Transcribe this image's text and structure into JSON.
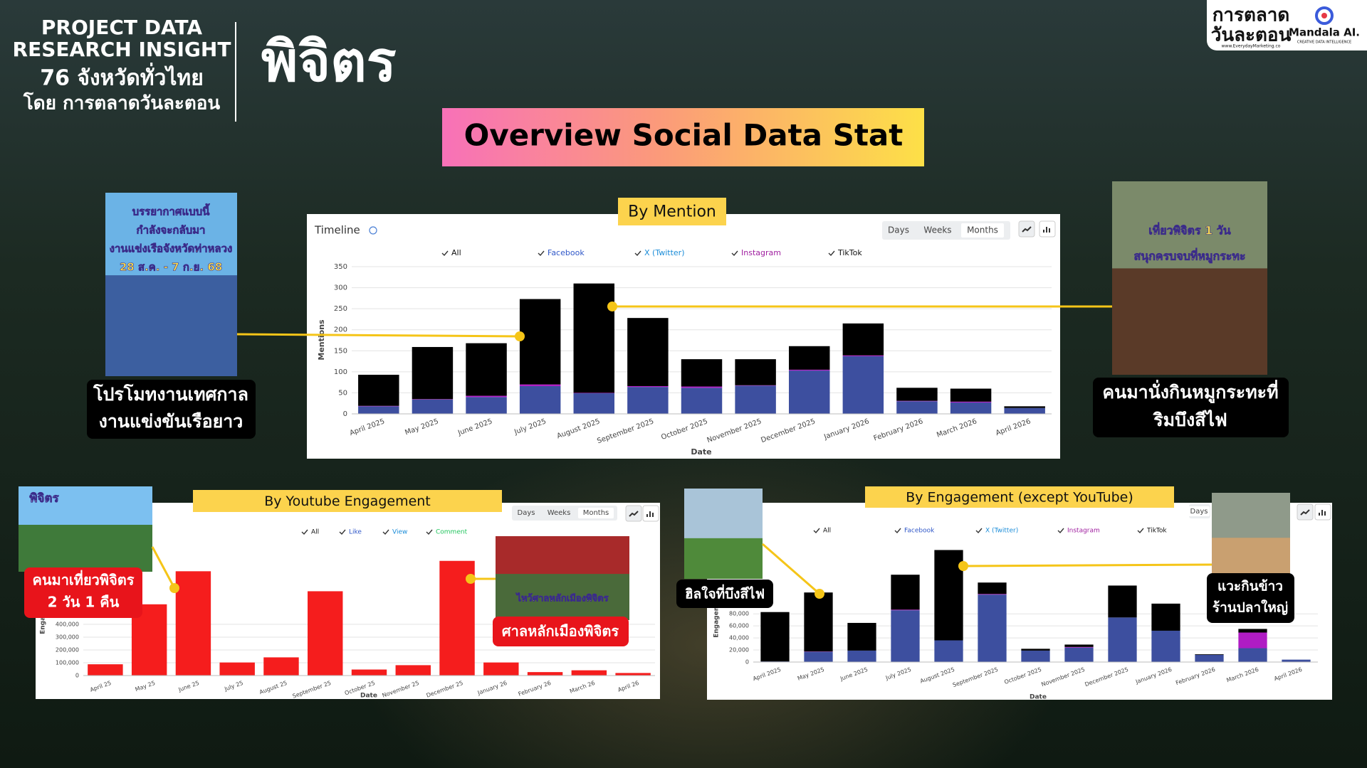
{
  "header": {
    "lines": [
      "PROJECT DATA",
      "RESEARCH INSIGHT",
      "76 จังหวัดทั่วไทย",
      "โดย การตลาดวันละตอน"
    ],
    "province": "พิจิตร"
  },
  "title": "Overview Social Data Stat",
  "logos": [
    "การตลาด",
    "วันละตอน",
    "www.EverydayMarketing.co",
    "Mandala AI.",
    "CREATIVE DATA INTELLIGENCE"
  ],
  "photos": [
    {
      "lines": [
        "บรรยากาศแบบนี้",
        "กำลังจะกลับมา",
        "งานแข่งเรือจังหวัดท่าหลวง",
        "28 ส.ค. - 7 ก.ย. 68"
      ]
    },
    {
      "lines": [
        "เที่ยวพิจิตร 1 วัน",
        "สนุกครบจบที่หมูกระทะ"
      ]
    },
    {
      "lines": [
        "พิจิตร"
      ]
    },
    {
      "lines": [
        "ไหว้ศาลหลักเมืองพิจิตร"
      ]
    }
  ],
  "captions": [
    {
      "lines": [
        "โปรโมทงานเทศกาล",
        "งานแข่งขันเรือยาว"
      ]
    },
    {
      "lines": [
        "คนมานั่งกินหมูกระทะที่",
        "ริมบึงสีไฟ"
      ]
    },
    {
      "lines": [
        "คนมาเที่ยวพิจิตร",
        "2 วัน 1 คืน"
      ]
    },
    {
      "lines": [
        "ศาลหลักเมืองพิจิตร"
      ]
    },
    {
      "lines": [
        "ฮิลใจที่บึงสีไฟ"
      ]
    },
    {
      "lines": [
        "แวะกินข้าว",
        "ร้านปลาใหญ่"
      ]
    }
  ],
  "chart_data": [
    {
      "type": "bar",
      "stacked": true,
      "panel_label": "By Mention",
      "header": "Timeline",
      "controls": [
        "Days",
        "Weeks",
        "Months"
      ],
      "active_control": "Months",
      "toggle_label": "All",
      "categories": [
        "April 2025",
        "May 2025",
        "June 2025",
        "July 2025",
        "August 2025",
        "September 2025",
        "October 2025",
        "November 2025",
        "December 2025",
        "January 2026",
        "February 2026",
        "March 2026",
        "April 2026"
      ],
      "series": [
        {
          "name": "Facebook",
          "color": "#3d4f9f",
          "legend_color": "#2f57c8",
          "values": [
            18,
            34,
            40,
            66,
            49,
            64,
            62,
            67,
            103,
            137,
            30,
            27,
            14
          ]
        },
        {
          "name": "X (Twitter)",
          "color": "#1a8cd8",
          "legend_color": "#1a8cd8",
          "values": [
            0,
            0,
            0,
            0,
            0,
            0,
            0,
            0,
            0,
            0,
            0,
            0,
            0
          ]
        },
        {
          "name": "Instagram",
          "color": "#b01cc4",
          "legend_color": "#a020a0",
          "values": [
            1,
            1,
            3,
            4,
            1,
            2,
            3,
            1,
            2,
            2,
            1,
            2,
            0
          ]
        },
        {
          "name": "TikTok",
          "color": "#000000",
          "legend_color": "#111111",
          "values": [
            74,
            124,
            125,
            203,
            260,
            162,
            65,
            62,
            56,
            76,
            31,
            31,
            4
          ]
        }
      ],
      "ylim": [
        0,
        350
      ],
      "yticks": [
        0,
        50,
        100,
        150,
        200,
        250,
        300,
        350
      ],
      "ylabel": "Mentions",
      "xlabel": "Date",
      "grid": true
    },
    {
      "type": "bar",
      "stacked": true,
      "panel_label": "By  Youtube Engagement",
      "controls": [
        "Days",
        "Weeks",
        "Months"
      ],
      "active_control": "Months",
      "toggle_label": "All",
      "categories": [
        "April 25",
        "May 25",
        "June 25",
        "July 25",
        "August 25",
        "September 25",
        "October 25",
        "November 25",
        "December 25",
        "January 26",
        "February 26",
        "March 26",
        "April 26"
      ],
      "series": [
        {
          "name": "Like",
          "color": "#f51d1d",
          "legend_color": "#2f57c8",
          "values": [
            88000,
            556000,
            814000,
            102000,
            142000,
            658000,
            47000,
            81000,
            895000,
            102000,
            27000,
            41000,
            20000
          ]
        },
        {
          "name": "View",
          "color": "#1a8cd8",
          "legend_color": "#1a8cd8",
          "values": [
            0,
            0,
            0,
            0,
            0,
            0,
            0,
            0,
            0,
            0,
            0,
            0,
            0
          ]
        },
        {
          "name": "Comment",
          "color": "#22c55e",
          "legend_color": "#22c55e",
          "values": [
            0,
            0,
            0,
            0,
            0,
            0,
            0,
            0,
            0,
            0,
            0,
            0,
            0
          ]
        }
      ],
      "ylim": [
        0,
        1060000
      ],
      "yticks": [
        0,
        {
          "value": 100000,
          "label": "100,000"
        },
        {
          "value": 200000,
          "label": "200,000"
        },
        {
          "value": 300000,
          "label": "300,000"
        },
        {
          "value": 400000,
          "label": "400,000"
        }
      ],
      "ylabel": "Engagement",
      "xlabel": "Date",
      "grid": true
    },
    {
      "type": "bar",
      "stacked": true,
      "panel_label": "By Engagement (except YouTube)",
      "controls": [
        "Days"
      ],
      "active_control": "Days",
      "toggle_label": "All",
      "categories": [
        "April 2025",
        "May 2025",
        "June 2025",
        "July 2025",
        "August 2025",
        "September 2025",
        "October 2025",
        "November 2025",
        "December 2025",
        "January 2026",
        "February 2026",
        "March 2026",
        "April 2026"
      ],
      "series": [
        {
          "name": "Facebook",
          "color": "#3d4f9f",
          "legend_color": "#2f57c8",
          "values": [
            1000,
            17000,
            19000,
            86000,
            36000,
            112000,
            19000,
            24000,
            74000,
            52000,
            12000,
            23000,
            4000
          ]
        },
        {
          "name": "X (Twitter)",
          "color": "#1a8cd8",
          "legend_color": "#1a8cd8",
          "values": [
            0,
            0,
            0,
            0,
            0,
            0,
            0,
            0,
            0,
            0,
            0,
            0,
            0
          ]
        },
        {
          "name": "Instagram",
          "color": "#b01cc4",
          "legend_color": "#a020a0",
          "values": [
            0,
            500,
            0,
            1000,
            0,
            1000,
            0,
            1000,
            0,
            0,
            0,
            26000,
            0
          ]
        },
        {
          "name": "TikTok",
          "color": "#000000",
          "legend_color": "#111111",
          "values": [
            82000,
            98000,
            46000,
            58000,
            150000,
            19000,
            3000,
            4000,
            53000,
            45000,
            1000,
            6000,
            0
          ]
        }
      ],
      "ylim": [
        0,
        196000
      ],
      "yticks": [
        0,
        {
          "value": 20000,
          "label": "20,000"
        },
        {
          "value": 40000,
          "label": "40,000"
        },
        {
          "value": 60000,
          "label": "60,000"
        },
        {
          "value": 80000,
          "label": "80,000"
        }
      ],
      "ylabel": "Engagement",
      "xlabel": "Date",
      "grid": true
    }
  ]
}
